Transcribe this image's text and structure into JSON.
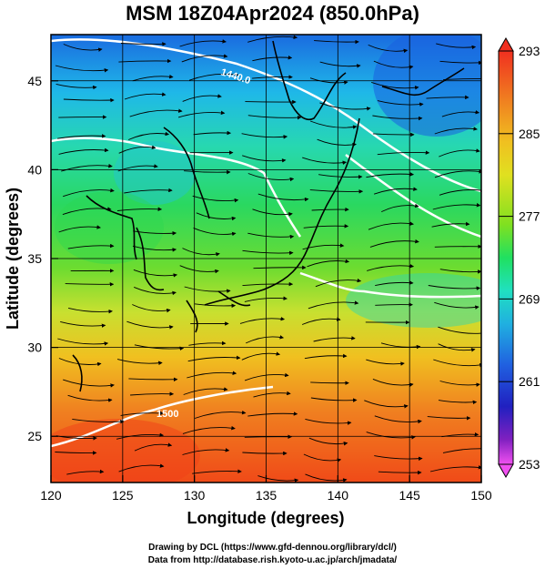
{
  "title": "MSM 18Z04Apr2024 (850.0hPa)",
  "map": {
    "x_axis": {
      "label": "Longitude (degrees)",
      "ticks": [
        120,
        125,
        130,
        135,
        140,
        145,
        150
      ],
      "range": [
        120,
        150
      ]
    },
    "y_axis": {
      "label": "Latitude  (degrees)",
      "ticks": [
        25,
        30,
        35,
        40,
        45
      ],
      "range": [
        22.4,
        47.6
      ]
    },
    "field": "temperature",
    "grid": true,
    "contour_labels": [
      "1440.0",
      "1500"
    ],
    "colorbar": {
      "min": 253,
      "max": 293,
      "ticks": [
        293,
        285,
        277,
        269,
        261,
        253
      ],
      "colors": [
        "#f050f0",
        "#8020c0",
        "#2020c0",
        "#2060e0",
        "#20b0e0",
        "#20e0c0",
        "#20e060",
        "#80e020",
        "#e0e020",
        "#f0a020",
        "#f06020",
        "#f03020"
      ]
    }
  },
  "credits": {
    "line1": "Drawing by DCL (https://www.gfd-dennou.org/library/dcl/)",
    "line2": "Data from http://database.rish.kyoto-u.ac.jp/arch/jmadata/"
  }
}
